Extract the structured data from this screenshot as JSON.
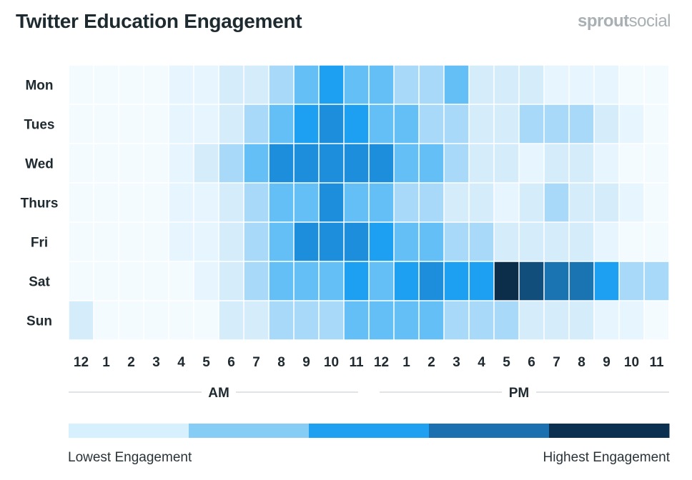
{
  "header": {
    "title": "Twitter Education Engagement",
    "brand_bold": "sprout",
    "brand_light": "social"
  },
  "legend": {
    "low_label": "Lowest Engagement",
    "high_label": "Highest Engagement",
    "colors": [
      "#d6f1fd",
      "#86cdf5",
      "#1fa0f0",
      "#1b70b0",
      "#0b3050"
    ]
  },
  "chart_data": {
    "type": "heatmap",
    "title": "Twitter Education Engagement",
    "y_categories": [
      "Mon",
      "Tues",
      "Wed",
      "Thurs",
      "Fri",
      "Sat",
      "Sun"
    ],
    "x_categories": [
      "12",
      "1",
      "2",
      "3",
      "4",
      "5",
      "6",
      "7",
      "8",
      "9",
      "10",
      "11",
      "12",
      "1",
      "2",
      "3",
      "4",
      "5",
      "6",
      "7",
      "8",
      "9",
      "10",
      "11"
    ],
    "x_groups": [
      {
        "label": "AM",
        "start": 0,
        "end": 11
      },
      {
        "label": "PM",
        "start": 12,
        "end": 23
      }
    ],
    "scale": {
      "min": 0,
      "max": 10
    },
    "palette": {
      "levels": [
        0,
        1,
        2,
        3,
        4,
        5,
        6,
        7,
        8,
        9,
        10
      ],
      "colors": [
        "#f3fbff",
        "#e7f6fe",
        "#d5ecfb",
        "#a8d9f8",
        "#63bff6",
        "#3aaef5",
        "#1ea0f2",
        "#1d8edb",
        "#1b74b2",
        "#124e7c",
        "#0c2e4b"
      ]
    },
    "values": [
      [
        0,
        0,
        0,
        0,
        1,
        1,
        2,
        2,
        3,
        4,
        6,
        4,
        4,
        3,
        3,
        4,
        2,
        2,
        2,
        1,
        1,
        1,
        0,
        0
      ],
      [
        0,
        0,
        0,
        0,
        1,
        1,
        2,
        3,
        4,
        6,
        7,
        6,
        4,
        4,
        3,
        3,
        2,
        2,
        3,
        3,
        3,
        2,
        1,
        0
      ],
      [
        0,
        0,
        0,
        0,
        1,
        2,
        3,
        4,
        7,
        7,
        7,
        7,
        7,
        4,
        4,
        3,
        2,
        2,
        1,
        2,
        2,
        1,
        0,
        0
      ],
      [
        0,
        0,
        0,
        0,
        1,
        1,
        2,
        3,
        4,
        4,
        7,
        4,
        4,
        3,
        3,
        2,
        2,
        1,
        2,
        3,
        2,
        2,
        1,
        0
      ],
      [
        0,
        0,
        0,
        0,
        1,
        1,
        2,
        3,
        4,
        7,
        7,
        7,
        6,
        4,
        4,
        3,
        3,
        2,
        2,
        2,
        2,
        1,
        0,
        0
      ],
      [
        0,
        0,
        0,
        0,
        0,
        1,
        2,
        3,
        4,
        4,
        4,
        6,
        4,
        6,
        7,
        6,
        6,
        10,
        9,
        8,
        8,
        6,
        3,
        3
      ],
      [
        2,
        0,
        0,
        0,
        0,
        0,
        2,
        2,
        3,
        3,
        3,
        4,
        4,
        4,
        4,
        3,
        3,
        3,
        2,
        2,
        2,
        1,
        1,
        0
      ]
    ]
  }
}
